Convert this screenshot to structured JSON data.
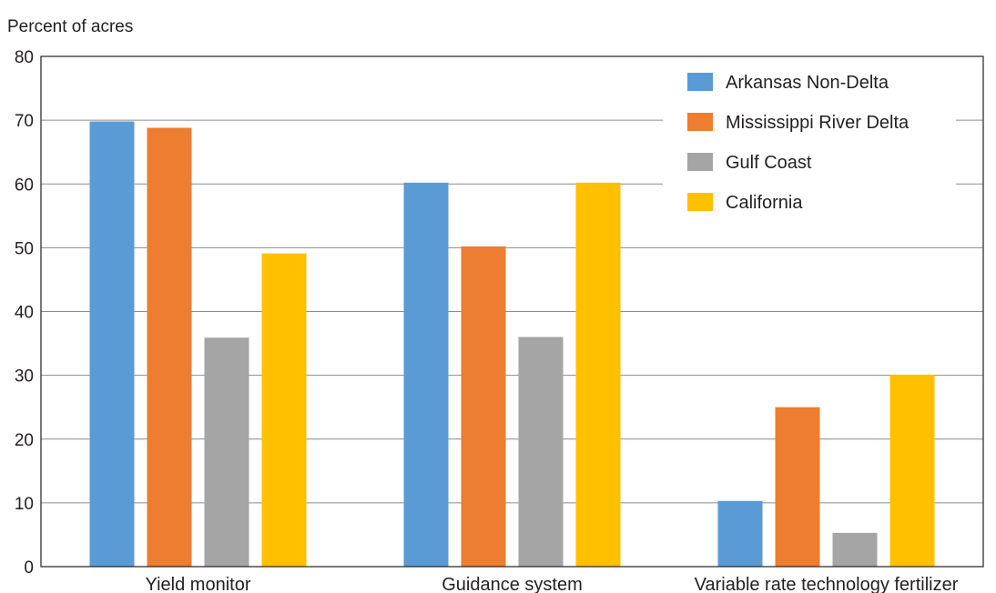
{
  "chart_data": {
    "type": "bar",
    "title": "",
    "ylabel": "Percent of acres",
    "xlabel": "",
    "ylim": [
      0,
      80
    ],
    "yticks": [
      0,
      10,
      20,
      30,
      40,
      50,
      60,
      70,
      80
    ],
    "grid": true,
    "legend_position": "top-right",
    "categories": [
      "Yield monitor",
      "Guidance system",
      "Variable rate technology fertilizer"
    ],
    "series": [
      {
        "name": "Arkansas Non-Delta",
        "color": "#5b9bd5",
        "values": [
          69.8,
          60.2,
          10.3
        ]
      },
      {
        "name": "Mississippi River Delta",
        "color": "#ed7d31",
        "values": [
          68.8,
          50.2,
          25.0
        ]
      },
      {
        "name": "Gulf Coast",
        "color": "#a5a5a5",
        "values": [
          35.9,
          36.0,
          5.3
        ]
      },
      {
        "name": "California",
        "color": "#ffc000",
        "values": [
          49.1,
          60.2,
          30.1
        ]
      }
    ]
  }
}
